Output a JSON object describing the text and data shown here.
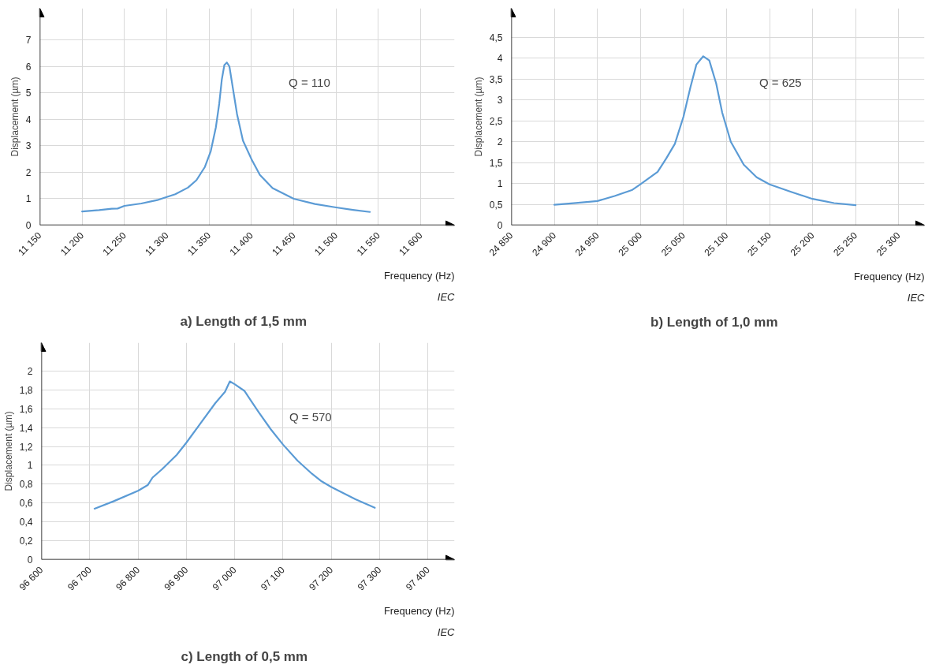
{
  "chart_data": [
    {
      "type": "line",
      "title": "a)   Length of 1,5 mm",
      "xlabel": "Frequency (Hz)",
      "ylabel": "Displacement (µm)",
      "annotations": [
        "Q = 110",
        "IEC"
      ],
      "grid": true,
      "x": [
        11200,
        11220,
        11235,
        11242,
        11250,
        11270,
        11290,
        11310,
        11325,
        11335,
        11345,
        11352,
        11358,
        11362,
        11365,
        11368,
        11371,
        11374,
        11378,
        11383,
        11390,
        11400,
        11410,
        11425,
        11450,
        11475,
        11500,
        11520,
        11540
      ],
      "series": [
        {
          "color": "#5b9bd5",
          "values": [
            0.52,
            0.57,
            0.62,
            0.63,
            0.73,
            0.82,
            0.96,
            1.17,
            1.42,
            1.7,
            2.2,
            2.8,
            3.7,
            4.6,
            5.5,
            6.05,
            6.15,
            6.0,
            5.2,
            4.2,
            3.2,
            2.5,
            1.9,
            1.4,
            1.0,
            0.8,
            0.67,
            0.58,
            0.5
          ]
        }
      ],
      "xlim": [
        11150,
        11640
      ],
      "ylim": [
        0,
        8.2
      ],
      "xticks": [
        {
          "value": 11150,
          "label": "11 150"
        },
        {
          "value": 11200,
          "label": "11 200"
        },
        {
          "value": 11250,
          "label": "11 250"
        },
        {
          "value": 11300,
          "label": "11 300"
        },
        {
          "value": 11350,
          "label": "11 350"
        },
        {
          "value": 11400,
          "label": "11 400"
        },
        {
          "value": 11450,
          "label": "11 450"
        },
        {
          "value": 11500,
          "label": "11 500"
        },
        {
          "value": 11550,
          "label": "11 550"
        },
        {
          "value": 11600,
          "label": "11 600"
        }
      ],
      "yticks": [
        0,
        1,
        2,
        3,
        4,
        5,
        6,
        7
      ]
    },
    {
      "type": "line",
      "title": "b)   Length of 1,0 mm",
      "xlabel": "Frequency (Hz)",
      "ylabel": "Displacement (µm)",
      "annotations": [
        "Q = 625",
        "IEC"
      ],
      "grid": true,
      "x": [
        24900,
        24925,
        24950,
        24970,
        24990,
        25000,
        25020,
        25030,
        25040,
        25050,
        25058,
        25065,
        25073,
        25080,
        25088,
        25095,
        25105,
        25120,
        25135,
        25150,
        25175,
        25200,
        25225,
        25250
      ],
      "series": [
        {
          "color": "#5b9bd5",
          "values": [
            0.49,
            0.53,
            0.58,
            0.7,
            0.84,
            0.98,
            1.28,
            1.6,
            1.95,
            2.6,
            3.3,
            3.85,
            4.05,
            3.95,
            3.4,
            2.7,
            2.0,
            1.45,
            1.15,
            0.98,
            0.8,
            0.63,
            0.53,
            0.48
          ]
        }
      ],
      "xlim": [
        24850,
        25330
      ],
      "ylim": [
        0,
        5.2
      ],
      "xticks": [
        {
          "value": 24850,
          "label": "24 850"
        },
        {
          "value": 24900,
          "label": "24 900"
        },
        {
          "value": 24950,
          "label": "24 950"
        },
        {
          "value": 25000,
          "label": "25 000"
        },
        {
          "value": 25050,
          "label": "25 050"
        },
        {
          "value": 25100,
          "label": "25 100"
        },
        {
          "value": 25150,
          "label": "25 150"
        },
        {
          "value": 25200,
          "label": "25 200"
        },
        {
          "value": 25250,
          "label": "25 250"
        },
        {
          "value": 25300,
          "label": "25 300"
        }
      ],
      "yticks": [
        0,
        {
          "value": 0.5,
          "label": "0,5"
        },
        1,
        {
          "value": 1.5,
          "label": "1,5"
        },
        2,
        {
          "value": 2.5,
          "label": "2,5"
        },
        3,
        {
          "value": 3.5,
          "label": "3,5"
        },
        4,
        {
          "value": 4.5,
          "label": "4,5"
        }
      ]
    },
    {
      "type": "line",
      "title": "c)   Length of 0,5 mm",
      "xlabel": "Frequency (Hz)",
      "ylabel": "Displacement (µm)",
      "annotations": [
        "Q = 570",
        "IEC"
      ],
      "grid": true,
      "x": [
        96710,
        96750,
        96800,
        96820,
        96830,
        96850,
        96880,
        96900,
        96930,
        96960,
        96980,
        96990,
        97000,
        97020,
        97050,
        97075,
        97100,
        97130,
        97160,
        97180,
        97200,
        97250,
        97290
      ],
      "series": [
        {
          "color": "#5b9bd5",
          "values": [
            0.54,
            0.62,
            0.73,
            0.79,
            0.87,
            0.96,
            1.11,
            1.24,
            1.45,
            1.66,
            1.78,
            1.89,
            1.86,
            1.79,
            1.56,
            1.38,
            1.22,
            1.05,
            0.91,
            0.83,
            0.77,
            0.64,
            0.55
          ]
        }
      ],
      "xlim": [
        96600,
        97455
      ],
      "ylim": [
        0,
        2.3
      ],
      "xticks": [
        {
          "value": 96600,
          "label": "96 600"
        },
        {
          "value": 96700,
          "label": "96 700"
        },
        {
          "value": 96800,
          "label": "96 800"
        },
        {
          "value": 96900,
          "label": "96 900"
        },
        {
          "value": 97000,
          "label": "97 000"
        },
        {
          "value": 97100,
          "label": "97 100"
        },
        {
          "value": 97200,
          "label": "97 200"
        },
        {
          "value": 97300,
          "label": "97 300"
        },
        {
          "value": 97400,
          "label": "97 400"
        }
      ],
      "yticks": [
        0,
        {
          "value": 0.2,
          "label": "0,2"
        },
        {
          "value": 0.4,
          "label": "0,4"
        },
        {
          "value": 0.6,
          "label": "0,6"
        },
        {
          "value": 0.8,
          "label": "0,8"
        },
        1,
        {
          "value": 1.2,
          "label": "1,2"
        },
        {
          "value": 1.4,
          "label": "1,4"
        },
        {
          "value": 1.6,
          "label": "1,6"
        },
        {
          "value": 1.8,
          "label": "1,8"
        },
        2
      ]
    }
  ]
}
